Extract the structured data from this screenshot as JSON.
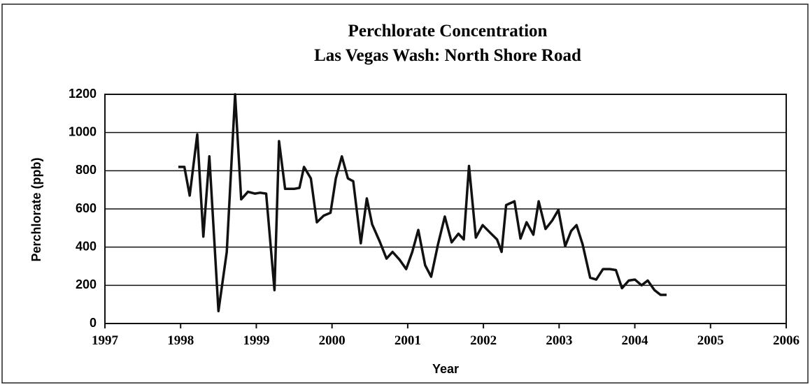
{
  "chart_data": {
    "type": "line",
    "title": "Perchlorate Concentration",
    "subtitle": "Las Vegas Wash: North Shore Road",
    "x_label": "Year",
    "y_label": "Perchlorate (ppb)",
    "xlim": [
      1997,
      2006
    ],
    "xticks": [
      1997,
      1998,
      1999,
      2000,
      2001,
      2002,
      2003,
      2004,
      2005,
      2006
    ],
    "ylim": [
      0,
      1200
    ],
    "yticks": [
      0,
      200,
      400,
      600,
      800,
      1000,
      1200
    ],
    "grid": true,
    "series": [
      {
        "name": "Perchlorate",
        "color": "#111111",
        "x": [
          1997.97,
          1998.05,
          1998.12,
          1998.22,
          1998.3,
          1998.38,
          1998.5,
          1998.61,
          1998.72,
          1998.8,
          1998.89,
          1998.98,
          1999.05,
          1999.13,
          1999.24,
          1999.3,
          1999.38,
          1999.5,
          1999.57,
          1999.63,
          1999.72,
          1999.8,
          1999.89,
          1999.98,
          2000.05,
          2000.13,
          2000.21,
          2000.28,
          2000.38,
          2000.46,
          2000.53,
          2000.63,
          2000.72,
          2000.8,
          2000.89,
          2000.98,
          2001.06,
          2001.14,
          2001.23,
          2001.31,
          2001.4,
          2001.49,
          2001.58,
          2001.67,
          2001.74,
          2001.81,
          2001.9,
          2001.99,
          2002.09,
          2002.18,
          2002.24,
          2002.3,
          2002.41,
          2002.49,
          2002.57,
          2002.66,
          2002.73,
          2002.82,
          2002.91,
          2002.99,
          2003.08,
          2003.16,
          2003.23,
          2003.31,
          2003.41,
          2003.49,
          2003.58,
          2003.67,
          2003.75,
          2003.83,
          2003.92,
          2004.0,
          2004.09,
          2004.17,
          2004.26,
          2004.34,
          2004.42
        ],
        "values": [
          820,
          820,
          670,
          990,
          455,
          875,
          65,
          375,
          1200,
          650,
          690,
          680,
          685,
          680,
          175,
          955,
          705,
          705,
          710,
          820,
          760,
          530,
          565,
          580,
          760,
          875,
          760,
          745,
          420,
          655,
          520,
          430,
          340,
          375,
          335,
          285,
          375,
          490,
          305,
          245,
          415,
          560,
          425,
          470,
          440,
          825,
          450,
          515,
          475,
          440,
          375,
          620,
          640,
          445,
          530,
          465,
          640,
          495,
          540,
          595,
          405,
          485,
          515,
          415,
          240,
          230,
          285,
          285,
          280,
          185,
          225,
          230,
          200,
          225,
          175,
          150,
          150
        ]
      }
    ]
  }
}
